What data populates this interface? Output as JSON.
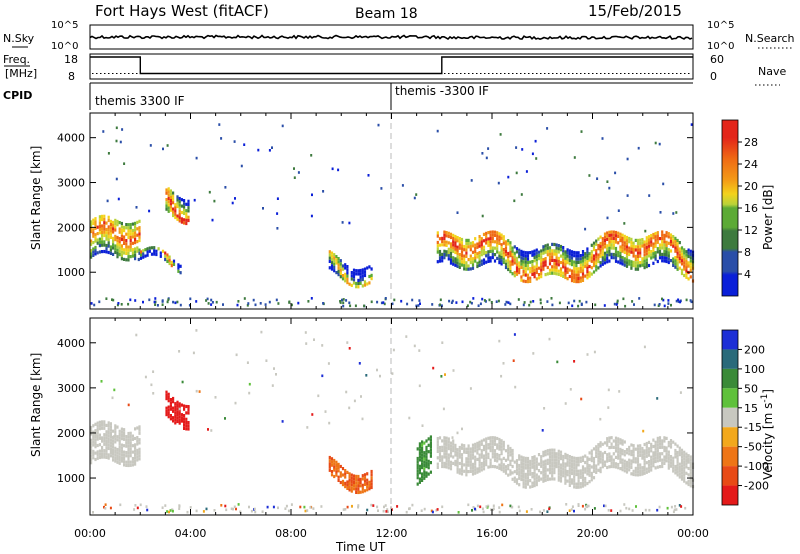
{
  "header": {
    "station": "Fort Hays West (fitACF)",
    "beam": "Beam 18",
    "date": "15/Feb/2015"
  },
  "colors": {
    "power_scale": [
      "#0a1fd8",
      "#2a4ea8",
      "#3d7a3e",
      "#5caa35",
      "#b8d23a",
      "#f3d21c",
      "#f39a17",
      "#ef6a14",
      "#e3251a"
    ],
    "velocity_scale": [
      "#1d2fd6",
      "#2a6a7a",
      "#3a8a38",
      "#5fc13b",
      "#c8c8c0",
      "#c8c8c0",
      "#f2a81c",
      "#ee7516",
      "#e84a16",
      "#e41a1a"
    ],
    "ground_scatter": "#c8c8c0"
  },
  "chart_data": [
    {
      "type": "line",
      "panel": "nsky",
      "labels": {
        "left": "N.Sky",
        "right": "N.Search"
      },
      "left_ticks": [
        "10^5",
        "10^0"
      ],
      "right_ticks": [
        "10^5",
        "10^0"
      ],
      "series": [
        {
          "name": "N.Sky",
          "style": "solid",
          "note": "near-constant trace ~10^3.5 noise level"
        },
        {
          "name": "N.Search",
          "style": "dotted"
        }
      ]
    },
    {
      "type": "line",
      "panel": "freq",
      "labels": {
        "left_top": "Freq.",
        "left_bottom": "[MHz]",
        "right": "Nave"
      },
      "left_ticks": [
        "18",
        "8"
      ],
      "right_ticks": [
        "60",
        "0"
      ],
      "series": [
        {
          "name": "Freq.",
          "style": "solid",
          "x_hours": [
            0,
            2,
            2,
            14,
            14,
            24
          ],
          "y": [
            18,
            18,
            10.5,
            10.5,
            18,
            18
          ]
        },
        {
          "name": "Nave",
          "style": "dotted",
          "value": 15
        }
      ]
    },
    {
      "type": "text",
      "panel": "cpid",
      "label": "CPID",
      "segments": [
        {
          "start_hour": 0,
          "text": "themis 3300 IF"
        },
        {
          "start_hour": 12,
          "text": "themis -3300 IF"
        }
      ]
    },
    {
      "type": "heatmap",
      "panel": "power",
      "title": "",
      "xlabel": "",
      "ylabel": "Slant Range [km]",
      "xlim": [
        0,
        24
      ],
      "ylim": [
        180,
        4550
      ],
      "yticks": [
        1000,
        2000,
        3000,
        4000
      ],
      "colorbar": {
        "label": "Power [dB]",
        "ticks": [
          4,
          8,
          12,
          16,
          20,
          24,
          28
        ],
        "range": [
          0,
          32
        ]
      },
      "scatter_regions": [
        {
          "t": [
            0.0,
            2.0
          ],
          "r": [
            1200,
            2050
          ],
          "value_db": 22
        },
        {
          "t": [
            1.9,
            3.6
          ],
          "r": [
            1150,
            1350
          ],
          "value_db": 24
        },
        {
          "t": [
            3.0,
            3.9
          ],
          "r": [
            2350,
            2850
          ],
          "value_db": 26
        },
        {
          "t": [
            9.5,
            11.2
          ],
          "r": [
            900,
            1300
          ],
          "value_db": 18
        },
        {
          "t": [
            13.8,
            24.0
          ],
          "r": [
            1050,
            1700
          ],
          "value_db": 24
        }
      ]
    },
    {
      "type": "heatmap",
      "panel": "velocity",
      "title": "",
      "xlabel": "Time UT",
      "ylabel": "Slant Range [km]",
      "xlim": [
        0,
        24
      ],
      "ylim": [
        180,
        4550
      ],
      "xticks": [
        "00:00",
        "04:00",
        "08:00",
        "12:00",
        "16:00",
        "20:00",
        "00:00"
      ],
      "yticks": [
        1000,
        2000,
        3000,
        4000
      ],
      "colorbar": {
        "label": "Velocity [m s-1]",
        "ticks": [
          200,
          100,
          50,
          15,
          -15,
          -50,
          -100,
          -200
        ]
      },
      "scatter_regions": [
        {
          "t": [
            0.0,
            2.0
          ],
          "r": [
            1200,
            2050
          ],
          "value": 0,
          "ground_scatter": true
        },
        {
          "t": [
            3.0,
            3.9
          ],
          "r": [
            2350,
            2850
          ],
          "value": -200
        },
        {
          "t": [
            9.5,
            11.2
          ],
          "r": [
            900,
            1300
          ],
          "value": -100
        },
        {
          "t": [
            13.0,
            13.6
          ],
          "r": [
            1000,
            1900
          ],
          "value": 50
        },
        {
          "t": [
            13.8,
            24.0
          ],
          "r": [
            1050,
            1700
          ],
          "value": 0,
          "ground_scatter": true
        }
      ]
    }
  ]
}
